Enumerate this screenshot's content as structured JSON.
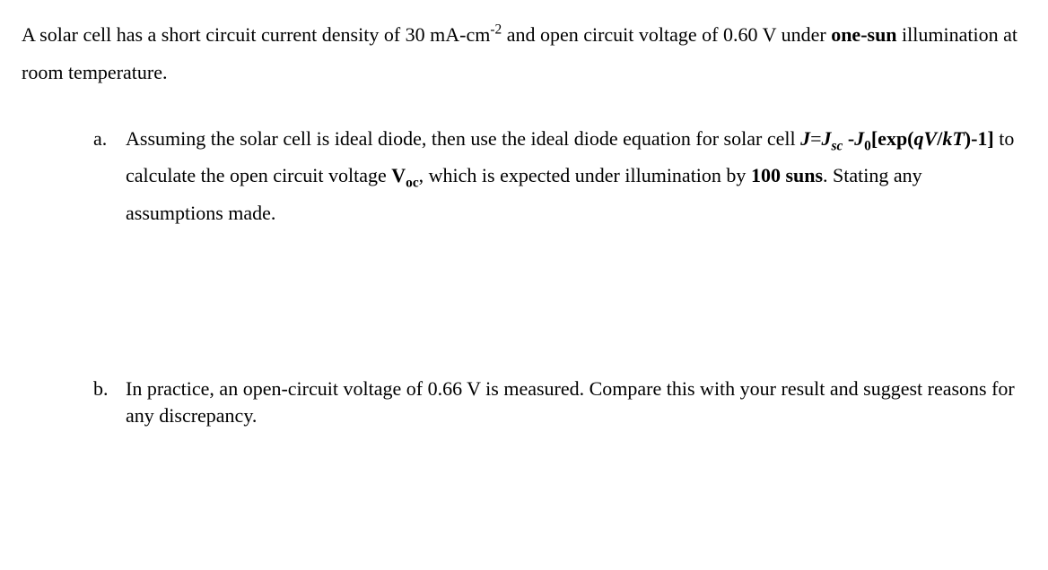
{
  "intro": {
    "pre": "A solar cell has a short circuit current density of 30 mA-cm",
    "exp": "-2",
    "mid": " and open circuit voltage of 0.60 V under ",
    "bold": "one-sun",
    "post": " illumination at room temperature."
  },
  "a": {
    "marker": "a.",
    "t1": "Assuming the solar cell is ideal diode, then use the ideal diode equation for solar cell ",
    "eq_J": "J",
    "eq_eq": "=",
    "eq_Jsc_J": "J",
    "eq_Jsc_sc": "sc",
    "eq_minus": " -",
    "eq_J0_J": "J",
    "eq_J0_0": "0",
    "eq_rest": "[exp(",
    "eq_qVkT_q": "q",
    "eq_qVkT_V": "V",
    "eq_qVkT_slash": "/",
    "eq_qVkT_k": "k",
    "eq_qVkT_T": "T",
    "eq_close": ")-1]",
    "t2": "  to calculate the open circuit voltage ",
    "voc_V": "V",
    "voc_oc": "oc",
    "t3": ", which is expected under illumination by ",
    "suns": "100 suns",
    "t4": ". Stating any assumptions made."
  },
  "b": {
    "marker": "b.",
    "text": "In practice, an open-circuit voltage of 0.66 V is measured. Compare this with your result and suggest reasons for any discrepancy."
  }
}
